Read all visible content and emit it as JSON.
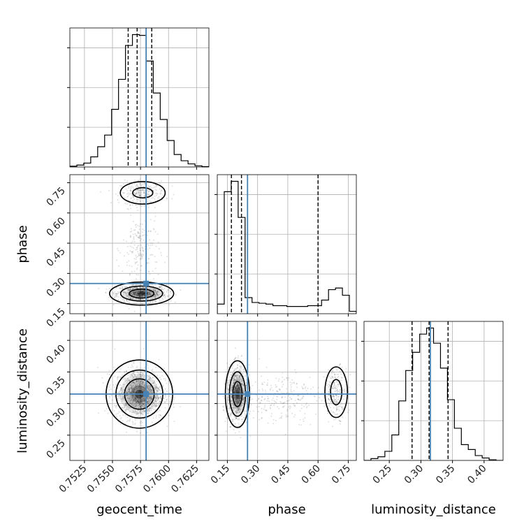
{
  "chart_data": {
    "type": "corner",
    "parameters": [
      "geocent_time",
      "phase",
      "luminosity_distance"
    ],
    "truths": {
      "geocent_time": 0.758,
      "phase": 0.25,
      "luminosity_distance": 0.315
    },
    "truth_color": "#4682b4",
    "ranges": {
      "geocent_time": [
        0.7512,
        0.7636
      ],
      "phase": [
        0.1,
        0.79
      ],
      "luminosity_distance": [
        0.21,
        0.43
      ]
    },
    "ticks": {
      "geocent_time": {
        "values": [
          0.7525,
          0.755,
          0.7575,
          0.76,
          0.7625
        ],
        "labels": [
          "0.7525",
          "0.7550",
          "0.7575",
          "0.7600",
          "0.7625"
        ]
      },
      "phase": {
        "values": [
          0.15,
          0.3,
          0.45,
          0.6,
          0.75
        ],
        "labels": [
          "0.15",
          "0.30",
          "0.45",
          "0.60",
          "0.75"
        ]
      },
      "luminosity_distance": {
        "values": [
          0.25,
          0.3,
          0.35,
          0.4
        ],
        "labels": [
          "0.25",
          "0.30",
          "0.35",
          "0.40"
        ]
      }
    },
    "histograms": {
      "geocent_time": {
        "quantiles": [
          0.7564,
          0.7572,
          0.7585
        ],
        "bin_edges": [
          0.7512,
          0.75182,
          0.75244,
          0.75306,
          0.75368,
          0.7543,
          0.75492,
          0.75554,
          0.75616,
          0.75678,
          0.7574,
          0.75802,
          0.75864,
          0.75926,
          0.75988,
          0.7605,
          0.76112,
          0.76174,
          0.76236,
          0.76298,
          0.7636
        ],
        "counts": [
          2,
          5,
          10,
          26,
          52,
          82,
          148,
          225,
          312,
          340,
          338,
          272,
          190,
          122,
          68,
          32,
          16,
          8,
          3,
          1
        ]
      },
      "phase": {
        "quantiles": [
          0.17,
          0.22,
          0.6
        ],
        "bin_edges": [
          0.1,
          0.1345,
          0.169,
          0.2035,
          0.238,
          0.2725,
          0.307,
          0.3415,
          0.376,
          0.4105,
          0.445,
          0.4795,
          0.514,
          0.5485,
          0.583,
          0.6175,
          0.652,
          0.6865,
          0.721,
          0.7555,
          0.79
        ],
        "counts": [
          12,
          152,
          165,
          120,
          20,
          14,
          13,
          12,
          10,
          10,
          9,
          9,
          9,
          10,
          10,
          17,
          30,
          32,
          23,
          3
        ]
      },
      "luminosity_distance": {
        "quantiles": [
          0.286,
          0.313,
          0.343
        ],
        "bin_edges": [
          0.21,
          0.221,
          0.232,
          0.243,
          0.254,
          0.265,
          0.276,
          0.287,
          0.298,
          0.309,
          0.32,
          0.331,
          0.342,
          0.353,
          0.364,
          0.375,
          0.386,
          0.397,
          0.408,
          0.419,
          0.43
        ],
        "counts": [
          0,
          3,
          6,
          15,
          42,
          98,
          148,
          178,
          208,
          218,
          193,
          152,
          100,
          53,
          26,
          18,
          8,
          4,
          1,
          0
        ]
      }
    },
    "grid": true
  }
}
